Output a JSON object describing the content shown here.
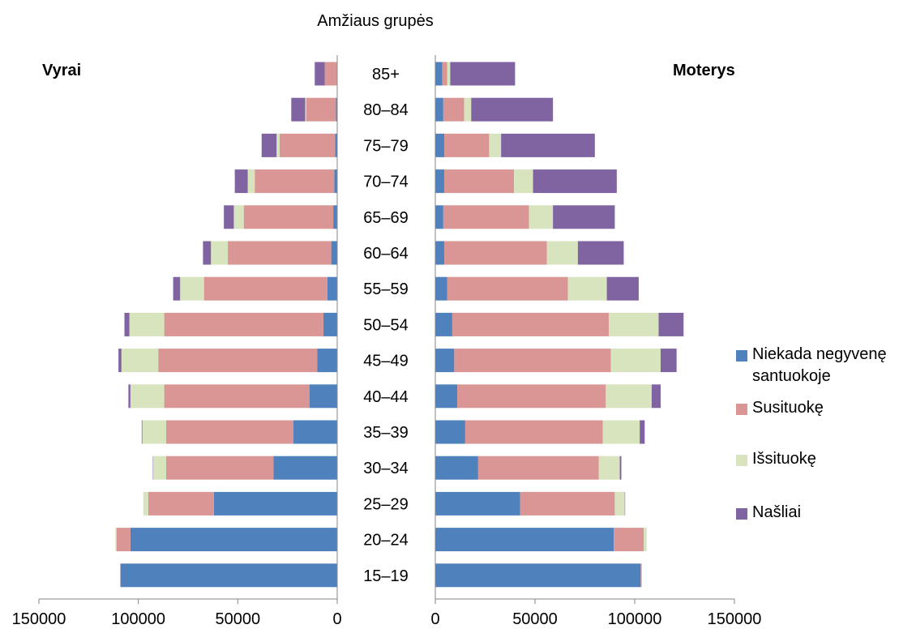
{
  "chart_data": {
    "type": "bar",
    "orientation": "horizontal",
    "layout": "population-pyramid",
    "stacked": true,
    "title": "Amžiaus grupės",
    "left_panel_label": "Vyrai",
    "right_panel_label": "Moterys",
    "categories": [
      "15–19",
      "20–24",
      "25–29",
      "30–34",
      "35–39",
      "40–44",
      "45–49",
      "50–54",
      "55–59",
      "60–64",
      "65–69",
      "70–74",
      "75–79",
      "80–84",
      "85+"
    ],
    "xlim_left": [
      0,
      150000
    ],
    "xlim_right": [
      0,
      150000
    ],
    "xticks": [
      "150000",
      "100000",
      "50000",
      "0",
      "0",
      "50000",
      "100000",
      "150000"
    ],
    "legend_position": "right",
    "series": [
      {
        "name": "Niekada negyvenę santuokoje",
        "color": "#4f81bd",
        "men": [
          109000,
          104000,
          62000,
          32000,
          22000,
          14000,
          10000,
          7000,
          5000,
          3000,
          2000,
          1500,
          1000,
          600,
          300
        ],
        "women": [
          103000,
          89500,
          42500,
          21500,
          15000,
          11000,
          9500,
          8500,
          6000,
          4500,
          4000,
          4500,
          4500,
          4000,
          3500
        ]
      },
      {
        "name": "Susituokę",
        "color": "#d99694",
        "men": [
          100,
          7000,
          33000,
          54000,
          64000,
          73000,
          80000,
          80000,
          62000,
          52000,
          45000,
          40000,
          28000,
          15000,
          6000
        ],
        "women": [
          500,
          15000,
          47500,
          60500,
          69000,
          74500,
          78500,
          78500,
          60500,
          51500,
          43000,
          35000,
          22500,
          10500,
          2500
        ]
      },
      {
        "name": "Išsituokę",
        "color": "#d7e4bd",
        "men": [
          0,
          500,
          2500,
          6500,
          12000,
          17000,
          18500,
          17500,
          12000,
          8500,
          5000,
          3500,
          1500,
          500,
          0
        ],
        "women": [
          0,
          1500,
          5000,
          10500,
          18500,
          23000,
          25000,
          25000,
          19500,
          15500,
          12000,
          9500,
          6000,
          3500,
          1500
        ]
      },
      {
        "name": "Našliai",
        "color": "#8064a2",
        "men": [
          0,
          0,
          0,
          200,
          300,
          1000,
          1500,
          2500,
          3500,
          4000,
          5000,
          6500,
          7500,
          7000,
          5000
        ],
        "women": [
          0,
          0,
          200,
          800,
          2500,
          4500,
          8000,
          12500,
          16000,
          23000,
          31000,
          42000,
          47000,
          41000,
          32500
        ]
      }
    ]
  }
}
